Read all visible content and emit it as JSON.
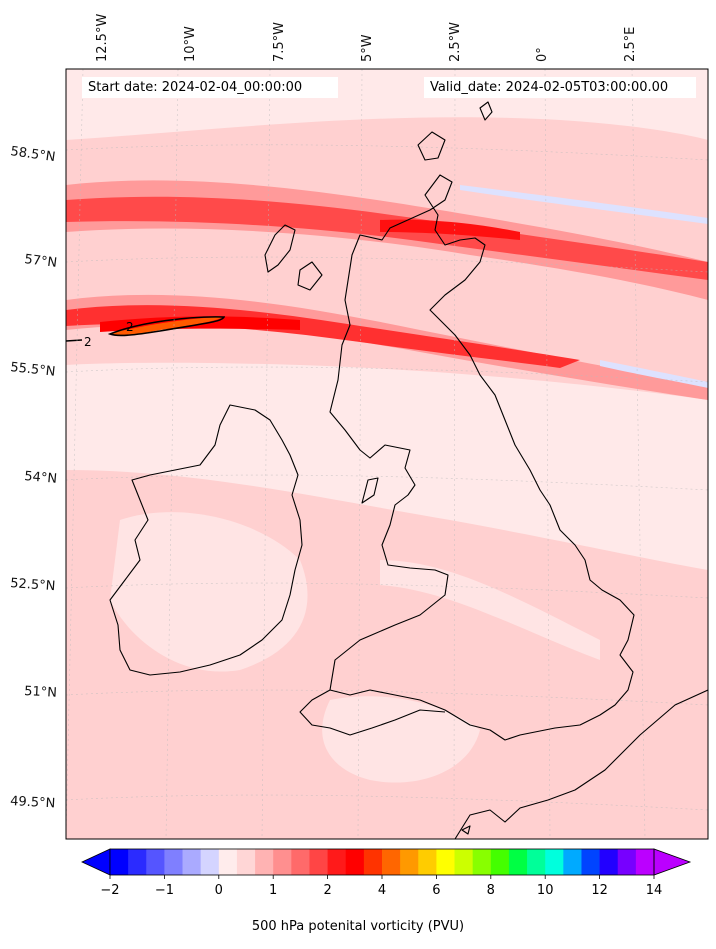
{
  "header": {
    "start_label": "Start date: 2024-02-04_00:00:00",
    "valid_label": "Valid_date: 2024-02-05T03:00:00.00"
  },
  "map": {
    "lon_labels": [
      "12.5°W",
      "10°W",
      "7.5°W",
      "5°W",
      "2.5°W",
      "0°",
      "2.5°E"
    ],
    "lat_labels": [
      "58.5°N",
      "57°N",
      "55.5°N",
      "54°N",
      "52.5°N",
      "51°N",
      "49.5°N"
    ],
    "contour_label": "2",
    "colors": {
      "background": "#ffe9e9",
      "light_pink": "#ffd0d0",
      "mid_red": "#ff7a7a",
      "strong_red": "#ff2020",
      "peak_red": "#ff0000",
      "orange": "#ff5a00",
      "light_blue": "#dde2ff",
      "coast": "#000000"
    }
  },
  "colorbar": {
    "label": "500 hPa potenital vorticity (PVU)",
    "tick_labels": [
      "−2",
      "−1",
      "0",
      "1",
      "2",
      "4",
      "6",
      "8",
      "10",
      "12",
      "14"
    ],
    "colors": [
      "#0000ff",
      "#2b2bff",
      "#5555ff",
      "#7f7fff",
      "#aaaaff",
      "#d4d4ff",
      "#ffecec",
      "#ffd6d6",
      "#ffb3b3",
      "#ff8f8f",
      "#ff6a6a",
      "#ff4545",
      "#ff1a1a",
      "#ff0000",
      "#ff3300",
      "#ff6600",
      "#ff9900",
      "#ffcc00",
      "#ffff00",
      "#ccff00",
      "#88ff00",
      "#44ff00",
      "#00ff44",
      "#00ff99",
      "#00ffdd",
      "#00aaff",
      "#0044ff",
      "#2200ff",
      "#7700ff",
      "#bb00ff"
    ]
  }
}
